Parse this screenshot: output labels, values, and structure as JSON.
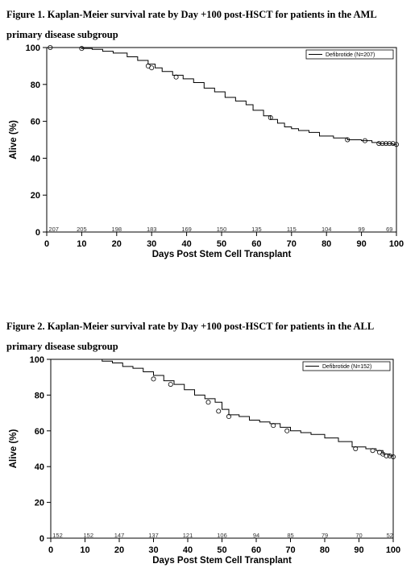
{
  "figures": [
    {
      "caption": "Figure 1. Kaplan-Meier survival rate by Day +100 post-HSCT for patients in the AML primary disease subgroup"
    },
    {
      "caption": "Figure 2. Kaplan-Meier survival rate by Day +100 post-HSCT for patients in the ALL primary disease subgroup"
    }
  ],
  "chart_data": [
    {
      "type": "line",
      "step": true,
      "xlabel": "Days Post Stem Cell Transplant",
      "ylabel": "Alive (%)",
      "xlim": [
        0,
        100
      ],
      "ylim": [
        0,
        100
      ],
      "xticks": [
        0,
        10,
        20,
        30,
        40,
        50,
        60,
        70,
        80,
        90,
        100
      ],
      "yticks": [
        0,
        20,
        40,
        60,
        80,
        100
      ],
      "grid": false,
      "legend_position": "top-right",
      "series": [
        {
          "name": "Defibrotide (N=207)",
          "color": "#000000",
          "x": [
            0,
            8,
            10,
            13,
            16,
            19,
            23,
            26,
            29,
            31,
            33,
            36,
            39,
            42,
            45,
            48,
            51,
            54,
            57,
            59,
            62,
            64,
            66,
            68,
            70,
            72,
            75,
            78,
            82,
            86,
            90,
            93,
            95,
            97,
            99,
            100
          ],
          "y": [
            100,
            100,
            99.5,
            99,
            98,
            97,
            95,
            93,
            91,
            89,
            87,
            85,
            83,
            81,
            78,
            76,
            73,
            71,
            69,
            66,
            63,
            61,
            59,
            57,
            56,
            55,
            54,
            52,
            51,
            50,
            49.5,
            48.5,
            48,
            48,
            47.5,
            47.5
          ]
        }
      ],
      "censor_marks": [
        {
          "x": 1,
          "y": 100
        },
        {
          "x": 10,
          "y": 99.5
        },
        {
          "x": 29,
          "y": 90
        },
        {
          "x": 30,
          "y": 89
        },
        {
          "x": 37,
          "y": 84
        },
        {
          "x": 64,
          "y": 62
        },
        {
          "x": 86,
          "y": 50
        },
        {
          "x": 91,
          "y": 49.5
        },
        {
          "x": 95,
          "y": 48
        },
        {
          "x": 96,
          "y": 48
        },
        {
          "x": 97,
          "y": 48
        },
        {
          "x": 98,
          "y": 48
        },
        {
          "x": 99,
          "y": 48
        },
        {
          "x": 100,
          "y": 47.5
        }
      ],
      "at_risk": [
        {
          "x": 2,
          "label": "207"
        },
        {
          "x": 10,
          "label": "205"
        },
        {
          "x": 20,
          "label": "198"
        },
        {
          "x": 30,
          "label": "183"
        },
        {
          "x": 40,
          "label": "169"
        },
        {
          "x": 50,
          "label": "150"
        },
        {
          "x": 60,
          "label": "135"
        },
        {
          "x": 70,
          "label": "115"
        },
        {
          "x": 80,
          "label": "104"
        },
        {
          "x": 90,
          "label": "99"
        },
        {
          "x": 98,
          "label": "69"
        }
      ]
    },
    {
      "type": "line",
      "step": true,
      "xlabel": "Days Post Stem Cell Transplant",
      "ylabel": "Alive (%)",
      "xlim": [
        0,
        100
      ],
      "ylim": [
        0,
        100
      ],
      "xticks": [
        0,
        10,
        20,
        30,
        40,
        50,
        60,
        70,
        80,
        90,
        100
      ],
      "yticks": [
        0,
        20,
        40,
        60,
        80,
        100
      ],
      "grid": false,
      "legend_position": "top-right",
      "series": [
        {
          "name": "Defibrotide (N=152)",
          "color": "#000000",
          "x": [
            0,
            12,
            15,
            18,
            21,
            24,
            27,
            30,
            33,
            36,
            39,
            42,
            45,
            48,
            50,
            52,
            55,
            58,
            61,
            64,
            67,
            70,
            73,
            76,
            80,
            84,
            88,
            92,
            95,
            97,
            99,
            100
          ],
          "y": [
            100,
            100,
            99,
            98,
            96,
            95,
            93,
            91,
            88,
            86,
            83,
            80,
            78,
            76,
            72,
            69,
            68,
            66,
            65,
            64,
            62,
            60,
            59,
            58,
            56,
            54,
            51,
            50,
            49,
            47,
            46,
            45.5
          ]
        }
      ],
      "censor_marks": [
        {
          "x": 30,
          "y": 89
        },
        {
          "x": 35,
          "y": 86
        },
        {
          "x": 46,
          "y": 76
        },
        {
          "x": 49,
          "y": 71
        },
        {
          "x": 52,
          "y": 68
        },
        {
          "x": 65,
          "y": 63
        },
        {
          "x": 69,
          "y": 60
        },
        {
          "x": 89,
          "y": 50
        },
        {
          "x": 94,
          "y": 49
        },
        {
          "x": 96,
          "y": 48
        },
        {
          "x": 97,
          "y": 47
        },
        {
          "x": 98,
          "y": 46
        },
        {
          "x": 99,
          "y": 46
        },
        {
          "x": 100,
          "y": 45.5
        }
      ],
      "at_risk": [
        {
          "x": 2,
          "label": "152"
        },
        {
          "x": 11,
          "label": "152"
        },
        {
          "x": 20,
          "label": "147"
        },
        {
          "x": 30,
          "label": "137"
        },
        {
          "x": 40,
          "label": "121"
        },
        {
          "x": 50,
          "label": "106"
        },
        {
          "x": 60,
          "label": "94"
        },
        {
          "x": 70,
          "label": "85"
        },
        {
          "x": 80,
          "label": "79"
        },
        {
          "x": 90,
          "label": "70"
        },
        {
          "x": 99,
          "label": "52"
        }
      ]
    }
  ]
}
